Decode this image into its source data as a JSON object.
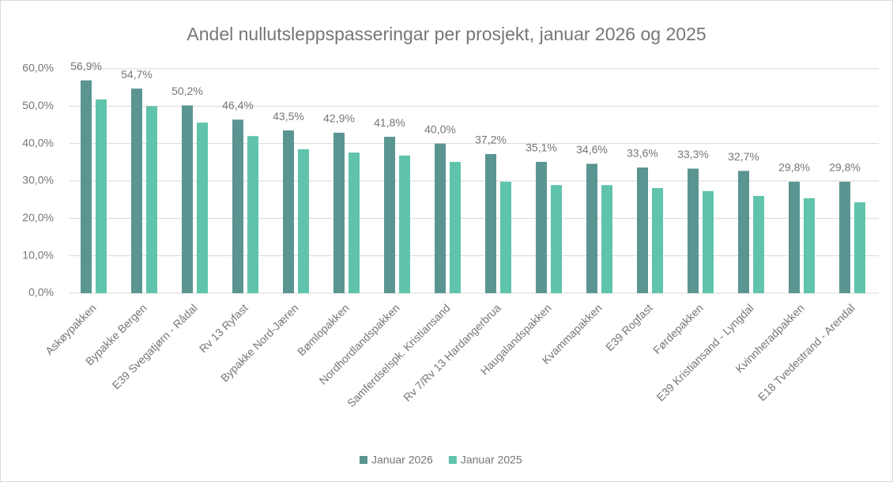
{
  "chart_data": {
    "type": "bar",
    "title": "Andel nullutsleppspasseringar  per prosjekt, januar 2026 og  2025",
    "categories": [
      "Askøypakken",
      "Bypakke Bergen",
      "E39 Svegatjørn - Rådal",
      "Rv 13 Ryfast",
      "Bypakke Nord-Jæren",
      "Bømlopakken",
      "Nordhordlandspakken",
      "Samferdselspk. Kristiansand",
      "Rv 7/Rv 13 Hardangerbrua",
      "Haugalandspakken",
      "Kvammapakken",
      "E39 Rogfast",
      "Førdepakken",
      "E39 Kristiansand - Lyngdal",
      "Kvinnheradpakken",
      "E18 Tvedestrand - Arendal"
    ],
    "series": [
      {
        "name": "Januar 2026",
        "color": "#5b9592",
        "values": [
          56.9,
          54.7,
          50.2,
          46.4,
          43.5,
          42.9,
          41.8,
          40.0,
          37.2,
          35.1,
          34.6,
          33.6,
          33.3,
          32.7,
          29.8,
          29.8
        ],
        "value_labels": [
          "56,9%",
          "54,7%",
          "50,2%",
          "46,4%",
          "43,5%",
          "42,9%",
          "41,8%",
          "40,0%",
          "37,2%",
          "35,1%",
          "34,6%",
          "33,6%",
          "33,3%",
          "32,7%",
          "29,8%",
          "29,8%"
        ]
      },
      {
        "name": "Januar 2025",
        "color": "#5fc4ab",
        "values": [
          51.8,
          50.0,
          45.6,
          42.0,
          38.5,
          37.6,
          36.8,
          35.1,
          29.8,
          28.9,
          28.9,
          28.1,
          27.3,
          26.0,
          25.4,
          24.3
        ]
      }
    ],
    "ylim": [
      0,
      60
    ],
    "yticks": [
      {
        "value": 0,
        "label": "0,0%"
      },
      {
        "value": 10,
        "label": "10,0%"
      },
      {
        "value": 20,
        "label": "20,0%"
      },
      {
        "value": 30,
        "label": "30,0%"
      },
      {
        "value": 40,
        "label": "40,0%"
      },
      {
        "value": 50,
        "label": "50,0%"
      },
      {
        "value": 60,
        "label": "60,0%"
      }
    ],
    "grid": true,
    "legend": "bottom"
  }
}
